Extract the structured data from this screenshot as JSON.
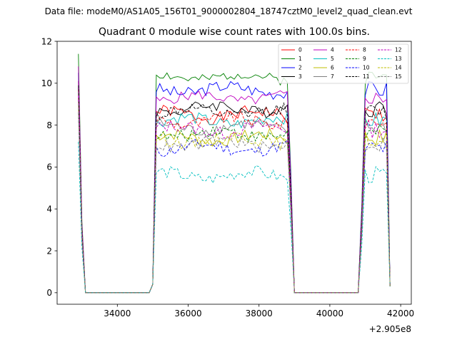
{
  "suptitle": "Data file: modeM0/AS1A05_156T01_9000002804_18747cztM0_level2_quad_clean.evt",
  "chart_data": {
    "type": "line",
    "title": "Quadrant 0 module wise count rates with 100.0s bins.",
    "xlabel": "",
    "ylabel": "",
    "x_offset_label": "+2.905e8",
    "xlim": [
      32300,
      42300
    ],
    "ylim": [
      -0.55,
      12.0
    ],
    "xticks": [
      34000,
      36000,
      38000,
      40000,
      42000
    ],
    "xtick_labels": [
      "34000",
      "36000",
      "38000",
      "40000",
      "42000"
    ],
    "yticks": [
      0,
      2,
      4,
      6,
      8,
      10,
      12
    ],
    "ytick_labels": [
      "0",
      "2",
      "4",
      "6",
      "8",
      "10",
      "12"
    ],
    "legend_position": "top-right",
    "segments": [
      [
        32900,
        35100
      ],
      [
        35100,
        38900
      ],
      [
        38900,
        40900
      ],
      [
        40900,
        41700
      ]
    ],
    "series": [
      {
        "name": "0",
        "color": "#ff0000",
        "dash": "solid",
        "start": 10.1,
        "plateau": 8.5,
        "noise": 0.3,
        "seed": 1
      },
      {
        "name": "1",
        "color": "#008000",
        "dash": "solid",
        "start": 11.4,
        "plateau": 10.3,
        "noise": 0.25,
        "seed": 2
      },
      {
        "name": "2",
        "color": "#0000ff",
        "dash": "solid",
        "start": 10.5,
        "plateau": 9.7,
        "noise": 0.3,
        "seed": 3
      },
      {
        "name": "3",
        "color": "#000000",
        "dash": "solid",
        "start": 9.8,
        "plateau": 8.8,
        "noise": 0.3,
        "seed": 4
      },
      {
        "name": "4",
        "color": "#bf00bf",
        "dash": "solid",
        "start": 10.8,
        "plateau": 9.3,
        "noise": 0.25,
        "seed": 5
      },
      {
        "name": "5",
        "color": "#00bfbf",
        "dash": "solid",
        "start": 9.5,
        "plateau": 8.2,
        "noise": 0.3,
        "seed": 6
      },
      {
        "name": "6",
        "color": "#bfbf00",
        "dash": "solid",
        "start": 9.0,
        "plateau": 7.4,
        "noise": 0.3,
        "seed": 7
      },
      {
        "name": "7",
        "color": "#808080",
        "dash": "solid",
        "start": 9.3,
        "plateau": 7.9,
        "noise": 0.3,
        "seed": 8
      },
      {
        "name": "8",
        "color": "#ff0000",
        "dash": "dashed",
        "start": 9.7,
        "plateau": 8.2,
        "noise": 0.3,
        "seed": 9
      },
      {
        "name": "9",
        "color": "#008000",
        "dash": "dashed",
        "start": 9.2,
        "plateau": 7.6,
        "noise": 0.3,
        "seed": 10
      },
      {
        "name": "10",
        "color": "#0000ff",
        "dash": "dashed",
        "start": 8.6,
        "plateau": 6.9,
        "noise": 0.3,
        "seed": 11
      },
      {
        "name": "11",
        "color": "#000000",
        "dash": "dashed",
        "start": 9.9,
        "plateau": 8.6,
        "noise": 0.3,
        "seed": 12
      },
      {
        "name": "12",
        "color": "#bf00bf",
        "dash": "dashed",
        "start": 9.4,
        "plateau": 7.8,
        "noise": 0.3,
        "seed": 13
      },
      {
        "name": "13",
        "color": "#00bfbf",
        "dash": "dashed",
        "start": 7.2,
        "plateau": 5.6,
        "noise": 0.3,
        "seed": 14
      },
      {
        "name": "14",
        "color": "#bfbf00",
        "dash": "dashed",
        "start": 8.8,
        "plateau": 7.3,
        "noise": 0.3,
        "seed": 15
      },
      {
        "name": "15",
        "color": "#808080",
        "dash": "dashed",
        "start": 9.0,
        "plateau": 7.1,
        "noise": 0.3,
        "seed": 16
      }
    ]
  }
}
